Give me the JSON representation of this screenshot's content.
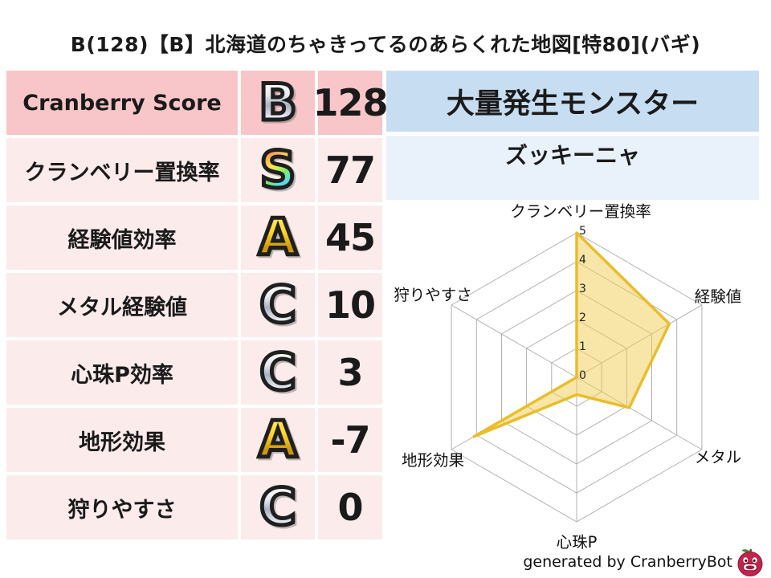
{
  "title": "B(128)【B】北海道のちゃきってるのあらくれた地図[特80](バギ)",
  "stats": {
    "rows": [
      {
        "label": "Cranberry Score",
        "grade": "B",
        "grade_style": "silver",
        "value": "128"
      },
      {
        "label": "クランベリー置換率",
        "grade": "S",
        "grade_style": "rainbow",
        "value": "77"
      },
      {
        "label": "経験値効率",
        "grade": "A",
        "grade_style": "gold",
        "value": "45"
      },
      {
        "label": "メタル経験値",
        "grade": "C",
        "grade_style": "silver",
        "value": "10"
      },
      {
        "label": "心珠P効率",
        "grade": "C",
        "grade_style": "silver",
        "value": "3"
      },
      {
        "label": "地形効果",
        "grade": "A",
        "grade_style": "gold",
        "value": "-7"
      },
      {
        "label": "狩りやすさ",
        "grade": "C",
        "grade_style": "silver",
        "value": "0"
      }
    ]
  },
  "monster_panel": {
    "header": "大量発生モンスター",
    "monster_name": "ズッキーニャ"
  },
  "footer": {
    "credit": "generated by CranberryBot",
    "icon": "cranberry-bot-icon"
  },
  "colors": {
    "row_dark_pink": "#f8c6c8",
    "row_light_pink": "#fcebeb",
    "header_blue": "#c7ddf2",
    "light_blue": "#e9f1fb",
    "radar_fill": "#f2cd53",
    "radar_stroke": "#e9bd2b",
    "grid_gray": "#b0b0b0"
  },
  "chart_data": {
    "type": "radar",
    "categories": [
      "クランベリー置換率",
      "経験値",
      "メタル",
      "心珠P",
      "地形効果",
      "狩りやすさ"
    ],
    "values": [
      5,
      3.7,
      2.1,
      0.6,
      4.1,
      0
    ],
    "ticks": [
      0,
      1,
      2,
      3,
      4,
      5
    ],
    "range": [
      0,
      5
    ],
    "grid": "hexagon-web-5-rings",
    "legend": "none",
    "fill_color": "#f2cd53",
    "fill_opacity": 0.5,
    "stroke_color": "#e9bd2b"
  }
}
